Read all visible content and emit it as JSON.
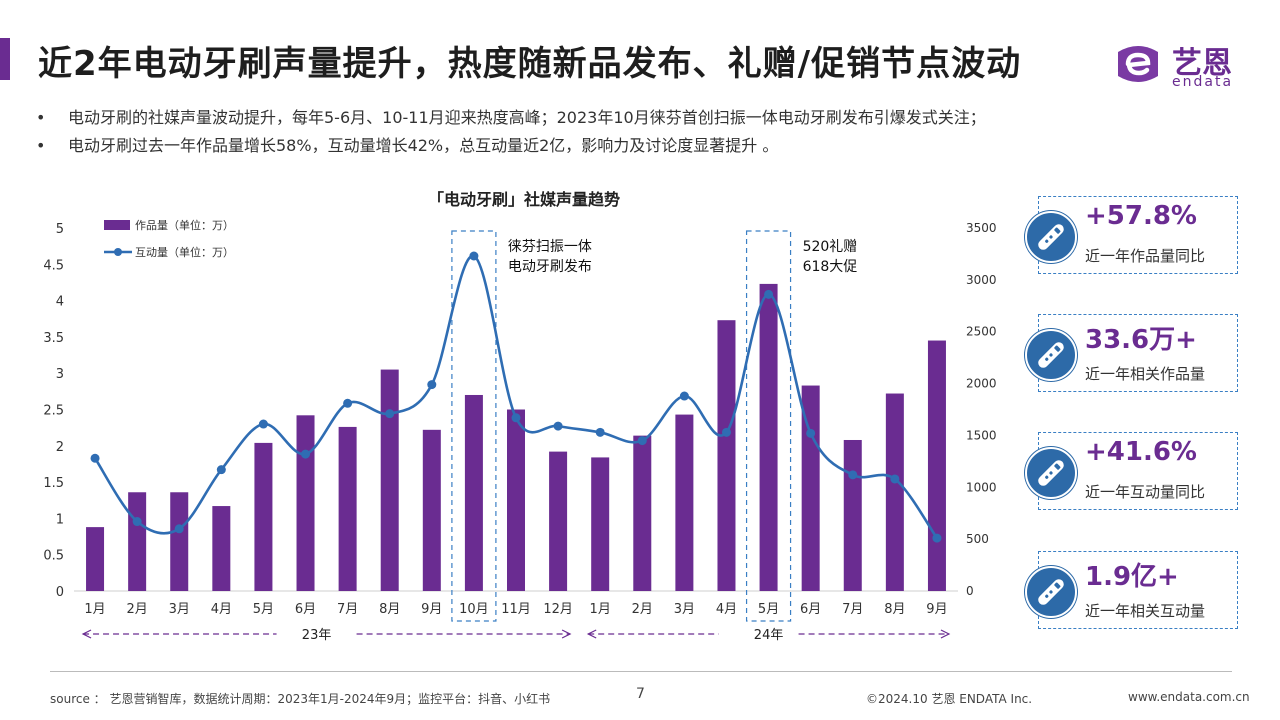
{
  "header": {
    "title": "近2年电动牙刷声量提升，热度随新品发布、礼赠/促销节点波动",
    "logo_cn": "艺恩",
    "logo_en": "endata"
  },
  "bullets": [
    "电动牙刷的社媒声量波动提升，每年5-6月、10-11月迎来热度高峰；2023年10月徕芬首创扫振一体电动牙刷发布引爆发式关注；",
    "电动牙刷过去一年作品量增长58%，互动量增长42%，总互动量近2亿，影响力及讨论度显著提升 。"
  ],
  "chart_data": {
    "type": "bar",
    "title": "「电动牙刷」社媒声量趋势",
    "categories": [
      "1月",
      "2月",
      "3月",
      "4月",
      "5月",
      "6月",
      "7月",
      "8月",
      "9月",
      "10月",
      "11月",
      "12月",
      "1月",
      "2月",
      "3月",
      "4月",
      "5月",
      "6月",
      "7月",
      "8月",
      "9月"
    ],
    "series": [
      {
        "name": "作品量（单位：万）",
        "type": "bar",
        "axis": "left",
        "color": "#6a2c91",
        "values": [
          0.88,
          1.36,
          1.36,
          1.17,
          2.04,
          2.42,
          2.26,
          3.05,
          2.22,
          2.7,
          2.5,
          1.92,
          1.84,
          2.14,
          2.43,
          3.73,
          4.23,
          2.83,
          2.08,
          2.72,
          3.45
        ]
      },
      {
        "name": "互动量（单位：万）",
        "type": "line",
        "axis": "right",
        "color": "#2f6db3",
        "values": [
          1280,
          670,
          600,
          1170,
          1610,
          1320,
          1810,
          1710,
          1990,
          3230,
          1670,
          1590,
          1530,
          1450,
          1880,
          1530,
          2860,
          1520,
          1120,
          1080,
          510
        ]
      }
    ],
    "y_left": {
      "ylim": [
        0,
        5
      ],
      "ticks": [
        "0",
        "0.5",
        "1",
        "1.5",
        "2",
        "2.5",
        "3",
        "3.5",
        "4",
        "4.5",
        "5"
      ]
    },
    "y_right": {
      "ylim": [
        0,
        3500
      ],
      "ticks": [
        "0",
        "500",
        "1000",
        "1500",
        "2000",
        "2500",
        "3000",
        "3500"
      ]
    },
    "year_groups": [
      {
        "label": "23年",
        "from": 0,
        "to": 11
      },
      {
        "label": "24年",
        "from": 12,
        "to": 20
      }
    ],
    "annotations": [
      {
        "index": 9,
        "lines": [
          "徕芬扫振一体",
          "电动牙刷发布"
        ]
      },
      {
        "index": 16,
        "lines": [
          "520礼赠",
          "618大促"
        ]
      }
    ],
    "legend_position": "top-left",
    "grid": false
  },
  "stats": [
    {
      "value": "+57.8%",
      "label": "近一年作品量同比",
      "icon": "electric-toothbrush-icon"
    },
    {
      "value": "33.6万+",
      "label": "近一年相关作品量",
      "icon": "electric-toothbrush-icon"
    },
    {
      "value": "+41.6%",
      "label": "近一年互动量同比",
      "icon": "electric-toothbrush-icon"
    },
    {
      "value": "1.9亿+",
      "label": "近一年相关互动量",
      "icon": "electric-toothbrush-icon"
    }
  ],
  "footer": {
    "source": "source ：  艺恩营销智库，数据统计周期：2023年1月-2024年9月；监控平台：抖音、小红书",
    "page_number": "7",
    "copyright": "©2024.10  艺恩 ENDATA Inc.",
    "website": "www.endata.com.cn"
  },
  "colors": {
    "brand": "#6a2c91",
    "line": "#2f6db3",
    "card_border": "#3a7fc4",
    "icon_bg": "#2d6aa8"
  }
}
